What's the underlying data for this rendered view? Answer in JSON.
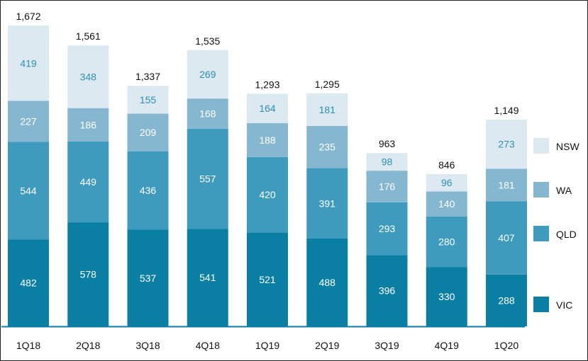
{
  "chart_data": {
    "type": "bar",
    "stacked": true,
    "categories": [
      "1Q18",
      "2Q18",
      "3Q18",
      "4Q18",
      "1Q19",
      "2Q19",
      "3Q19",
      "4Q19",
      "1Q20"
    ],
    "series": [
      {
        "name": "VIC",
        "color": "#0a7fa3",
        "label_color": "#ffffff",
        "values": [
          482,
          578,
          537,
          541,
          521,
          488,
          396,
          330,
          288
        ]
      },
      {
        "name": "QLD",
        "color": "#3f9bbd",
        "label_color": "#ffffff",
        "values": [
          544,
          449,
          436,
          557,
          420,
          391,
          293,
          280,
          407
        ]
      },
      {
        "name": "WA",
        "color": "#86b7d0",
        "label_color": "#ffffff",
        "values": [
          227,
          186,
          209,
          168,
          188,
          235,
          176,
          140,
          181
        ]
      },
      {
        "name": "NSW",
        "color": "#dde9f1",
        "label_color": "#2a8fb3",
        "values": [
          419,
          348,
          155,
          269,
          164,
          181,
          98,
          96,
          273
        ]
      }
    ],
    "totals": [
      "1,672",
      "1,561",
      "1,337",
      "1,535",
      "1,293",
      "1,295",
      "963",
      "846",
      "1,149"
    ],
    "legend_order": [
      "NSW",
      "WA",
      "QLD",
      "VIC"
    ],
    "legend_position": "right",
    "ylim": [
      0,
      1672
    ],
    "grid": false,
    "axis_color": "#0a7fa3"
  }
}
